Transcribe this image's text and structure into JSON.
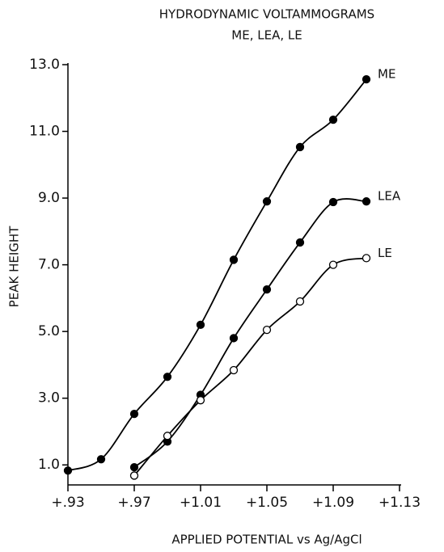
{
  "chart_data": {
    "type": "scatter",
    "title": "HYDRODYNAMIC VOLTAMMOGRAMS",
    "subtitle": "ME, LEA, LE",
    "x_label": "APPLIED POTENTIAL vs Ag/AgCl",
    "y_label": "PEAK HEIGHT",
    "xlim": [
      0.93,
      1.13
    ],
    "ylim": [
      0.4,
      13.0
    ],
    "xticks": [
      {
        "value": 0.93,
        "label": "+.93"
      },
      {
        "value": 0.97,
        "label": "+.97"
      },
      {
        "value": 1.01,
        "label": "+1.01"
      },
      {
        "value": 1.05,
        "label": "+1.05"
      },
      {
        "value": 1.09,
        "label": "+1.09"
      },
      {
        "value": 1.13,
        "label": "+1.13"
      }
    ],
    "yticks": [
      {
        "value": 1,
        "label": "1.0"
      },
      {
        "value": 3,
        "label": "3.0"
      },
      {
        "value": 5,
        "label": "5.0"
      },
      {
        "value": 7,
        "label": "7.0"
      },
      {
        "value": 9,
        "label": "9.0"
      },
      {
        "value": 11,
        "label": "11.0"
      },
      {
        "value": 13,
        "label": "13.0"
      }
    ],
    "series": [
      {
        "name": "ME",
        "color": "#000000",
        "marker": "filled",
        "x": [
          0.93,
          0.95,
          0.97,
          0.99,
          1.01,
          1.03,
          1.05,
          1.07,
          1.09,
          1.11
        ],
        "values": [
          0.83,
          1.17,
          2.53,
          3.64,
          5.2,
          7.15,
          8.9,
          10.53,
          11.35,
          12.56
        ]
      },
      {
        "name": "LEA",
        "color": "#000000",
        "marker": "filled",
        "x": [
          0.97,
          0.99,
          1.01,
          1.03,
          1.05,
          1.07,
          1.09,
          1.11
        ],
        "values": [
          0.93,
          1.7,
          3.1,
          4.8,
          6.26,
          7.67,
          8.88,
          8.9
        ]
      },
      {
        "name": "LE",
        "color": "#000000",
        "marker": "open",
        "x": [
          0.97,
          0.99,
          1.01,
          1.03,
          1.05,
          1.07,
          1.09,
          1.11
        ],
        "values": [
          0.68,
          1.87,
          2.94,
          3.84,
          5.05,
          5.9,
          7.0,
          7.2
        ]
      }
    ]
  }
}
